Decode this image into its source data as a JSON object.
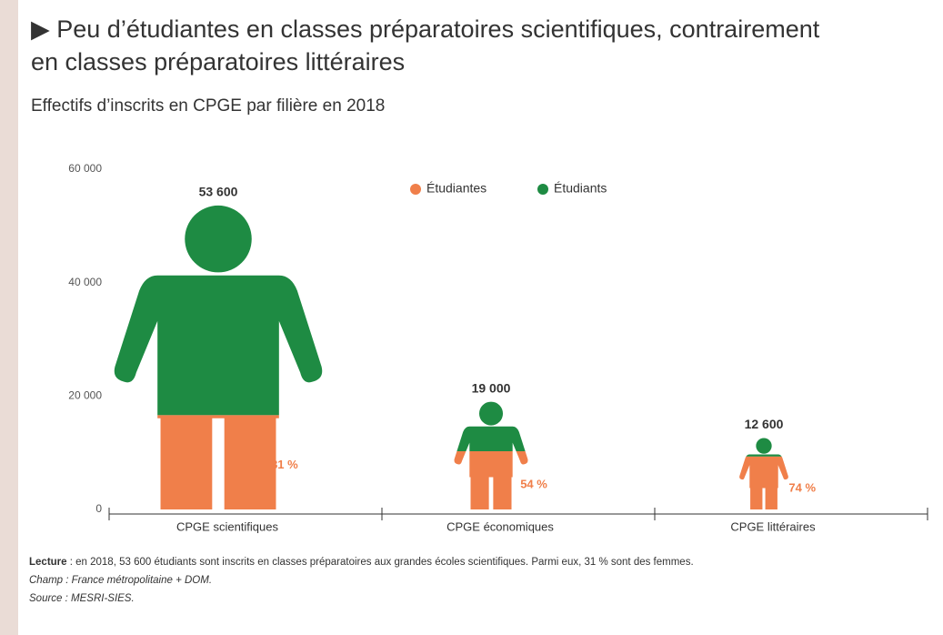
{
  "chart_data": {
    "type": "pictogram",
    "title": "▶ Peu d’étudiantes en classes préparatoires scientifiques, contrairement en classes préparatoires littéraires",
    "subtitle": "Effectifs d’inscrits en CPGE par filière en 2018",
    "categories": [
      "CPGE scientifiques",
      "CPGE économiques",
      "CPGE littéraires"
    ],
    "values": [
      53600,
      19000,
      12600
    ],
    "value_labels": [
      "53 600",
      "19 000",
      "12 600"
    ],
    "series": [
      {
        "name": "Étudiantes",
        "color": "#f07f4a",
        "values": [
          31,
          54,
          74
        ],
        "value_labels": [
          "31 %",
          "54 %",
          "74 %"
        ]
      },
      {
        "name": "Étudiants",
        "color": "#1e8b43",
        "values": [
          69,
          46,
          26
        ]
      }
    ],
    "ylim": [
      0,
      60000
    ],
    "yticks": [
      0,
      {
        "value": 20000,
        "label": "20 000"
      },
      {
        "value": 40000,
        "label": "40 000"
      },
      {
        "value": 60000,
        "label": "60 000"
      }
    ],
    "notes": {
      "reading_label": "Lecture",
      "reading": " : en 2018, 53 600 étudiants sont inscrits en classes préparatoires aux grandes écoles scientifiques. Parmi eux, 31 % sont des femmes.",
      "scope": "Champ : France métropolitaine + DOM.",
      "source": "Source : MESRI-SIES."
    }
  }
}
